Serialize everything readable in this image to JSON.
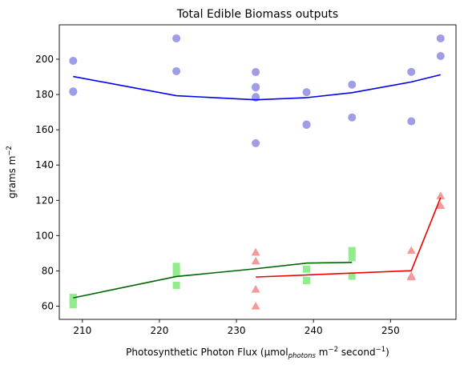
{
  "chart_data": {
    "type": "scatter",
    "title": "Total Edible Biomass outputs",
    "xlabel_parts": [
      "Photosynthetic Photon Flux (μmol",
      "photons",
      " m",
      "−2",
      " second",
      "−1",
      ")"
    ],
    "ylabel_parts": [
      "grams m",
      "−2"
    ],
    "xlim": [
      207,
      258.5
    ],
    "ylim": [
      52.5,
      219.5
    ],
    "xticks": [
      210,
      220,
      230,
      240,
      250
    ],
    "yticks": [
      60,
      80,
      100,
      120,
      140,
      160,
      180,
      200
    ],
    "grid": false,
    "legend": "none",
    "scatter_series": [
      {
        "marker": "circle",
        "color": "#9f9ce8",
        "points": [
          [
            208.8,
            199.1
          ],
          [
            208.8,
            181.8
          ],
          [
            208.8,
            181.5
          ],
          [
            222.2,
            211.8
          ],
          [
            222.2,
            193.2
          ],
          [
            232.5,
            192.7
          ],
          [
            232.5,
            184.3
          ],
          [
            232.5,
            184.0
          ],
          [
            232.5,
            178.6
          ],
          [
            232.5,
            178.2
          ],
          [
            232.5,
            152.4
          ],
          [
            239.1,
            181.3
          ],
          [
            239.1,
            163.0
          ],
          [
            239.1,
            162.8
          ],
          [
            245.0,
            185.6
          ],
          [
            245.0,
            167.0
          ],
          [
            252.7,
            192.8
          ],
          [
            252.7,
            164.8
          ],
          [
            256.5,
            211.8
          ],
          [
            256.5,
            201.8
          ]
        ]
      },
      {
        "marker": "square",
        "color": "#92ec8c",
        "points": [
          [
            208.8,
            65.0
          ],
          [
            208.8,
            63.8
          ],
          [
            208.8,
            62.0
          ],
          [
            208.8,
            60.8
          ],
          [
            222.2,
            82.5
          ],
          [
            222.2,
            80.5
          ],
          [
            222.2,
            78.8
          ],
          [
            222.2,
            71.8
          ],
          [
            239.1,
            81.0
          ],
          [
            239.1,
            74.5
          ],
          [
            245.0,
            91.5
          ],
          [
            245.0,
            87.5
          ],
          [
            245.0,
            77.0
          ]
        ]
      },
      {
        "marker": "triangle",
        "color": "#f59a9a",
        "points": [
          [
            232.5,
            90.5
          ],
          [
            232.5,
            85.5
          ],
          [
            232.5,
            69.5
          ],
          [
            232.5,
            60.0
          ],
          [
            252.7,
            91.5
          ],
          [
            252.7,
            77.2
          ],
          [
            252.7,
            76.5
          ],
          [
            256.5,
            122.5
          ],
          [
            256.5,
            117.0
          ]
        ]
      }
    ],
    "line_series": [
      {
        "color": "#0000ee",
        "x": [
          208.8,
          222.2,
          232.5,
          239.1,
          245.0,
          252.7,
          256.5
        ],
        "y": [
          190.2,
          179.3,
          177.0,
          178.2,
          181.0,
          187.1,
          191.2
        ]
      },
      {
        "color": "#006400",
        "x": [
          208.8,
          222.2,
          232.5,
          239.1,
          245.0
        ],
        "y": [
          64.7,
          76.8,
          81.2,
          84.4,
          84.8
        ]
      },
      {
        "color": "#ee0000",
        "x": [
          232.5,
          252.7,
          256.5
        ],
        "y": [
          76.5,
          80.1,
          121.5
        ]
      }
    ]
  }
}
